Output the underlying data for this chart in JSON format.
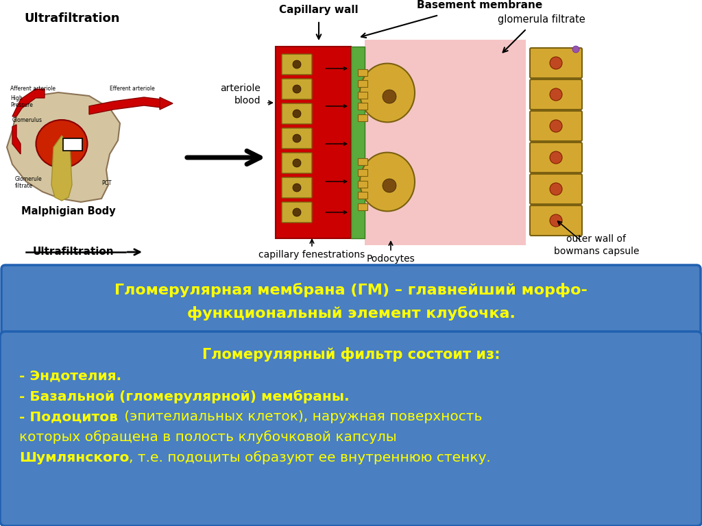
{
  "bg_color": "#ffffff",
  "box1_bg": "#4a7fc1",
  "box1_border": "#2060b0",
  "box1_text_color": "#ffff00",
  "box1_text_line1": "Гломерулярная мембрана (ГМ) – главнейший морфо-",
  "box1_text_line2": "функциональный элемент клубочка.",
  "box2_bg": "#4a7fc1",
  "box2_border": "#2060b0",
  "box2_text_color": "#ffff00",
  "box2_title": "Гломерулярный фильтр состоит из:",
  "box2_line1_bold": "- Эндотелия.",
  "box2_line2_bold": "- Базальной (гломерулярной) мембраны.",
  "box2_line3_bold": "- Подоцитов",
  "box2_line3_rest": " (эпителиальных клеток), наружная поверхность",
  "box2_line4": "которых обращена в полость клубочковой капсулы",
  "box2_line5_bold": "Шумлянского",
  "box2_line5_rest": ", т.е. подоциты образуют ее внутреннюю стенку.",
  "top_label": "Ultrafiltration",
  "bottom_label": "Ultrafiltration",
  "cap_wall_label": "Capillary wall",
  "basement_label": "Basement membrane",
  "glom_label": "glomerula filtrate",
  "arteriole_label": "arteriole\nblood",
  "capfenest_label": "capillary fenestrations",
  "podocytes_label": "Podocytes",
  "outerwall_label": "outer wall of\nbowmans capsule",
  "malphigian_label": "Malphigian Body"
}
